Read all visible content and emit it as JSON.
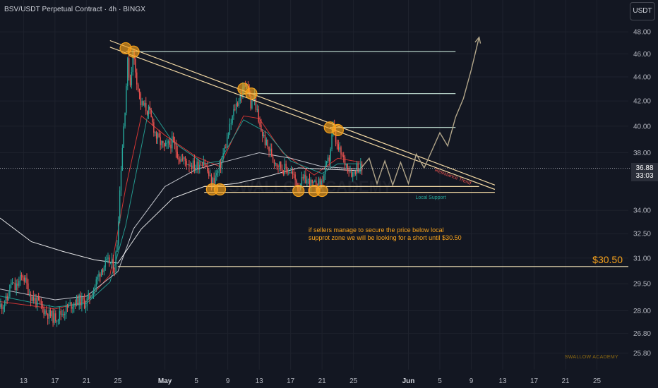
{
  "header": {
    "title": "BSV/USDT Perpetual Contract · 4h · BINGX",
    "currency": "USDT"
  },
  "price_tag": {
    "price": "36.88",
    "countdown": "33:03"
  },
  "labels": {
    "resistance": "Resistance Trend",
    "support": "Local Support",
    "note_line_1": "if sellers manage to secure the price below local",
    "note_line_2": "supprot zone we will be looking for a short until $30.50",
    "target": "$30.50",
    "watermark": "SWALLOW ACADEMY"
  },
  "colors": {
    "background": "#131722",
    "grid": "#1e222d",
    "up": "#26a69a",
    "down": "#ef5350",
    "ema_fast": "#e53935",
    "ema_mid": "#26a69a",
    "ma_slow": "#d1d4dc",
    "ma_slowest": "#ffffff",
    "trendline": "#f3d9a4",
    "levels": "#c8e6d9",
    "markers": "#f7a21b",
    "projection": "#b2a68a"
  },
  "chart_data": {
    "type": "candlestick",
    "title": "BSV/USDT Perpetual Contract · 4h · BINGX",
    "y_scale": "log",
    "y_range": [
      25.4,
      49.0
    ],
    "y_ticks": [
      "48.00",
      "46.00",
      "44.00",
      "42.00",
      "40.00",
      "38.00",
      "34.00",
      "32.50",
      "31.00",
      "29.50",
      "28.00",
      "26.80",
      "25.80"
    ],
    "x_range": [
      "2024-04-10",
      "2024-06-29"
    ],
    "x_ticks": [
      {
        "date": "2024-04-13",
        "label": "13"
      },
      {
        "date": "2024-04-17",
        "label": "17"
      },
      {
        "date": "2024-04-21",
        "label": "21"
      },
      {
        "date": "2024-04-25",
        "label": "25"
      },
      {
        "date": "2024-05-01",
        "label": "May",
        "bold": true
      },
      {
        "date": "2024-05-05",
        "label": "5"
      },
      {
        "date": "2024-05-09",
        "label": "9"
      },
      {
        "date": "2024-05-13",
        "label": "13"
      },
      {
        "date": "2024-05-17",
        "label": "17"
      },
      {
        "date": "2024-05-21",
        "label": "21"
      },
      {
        "date": "2024-05-25",
        "label": "25"
      },
      {
        "date": "2024-06-01",
        "label": "Jun",
        "bold": true
      },
      {
        "date": "2024-06-05",
        "label": "5"
      },
      {
        "date": "2024-06-09",
        "label": "9"
      },
      {
        "date": "2024-06-13",
        "label": "13"
      },
      {
        "date": "2024-06-17",
        "label": "17"
      },
      {
        "date": "2024-06-21",
        "label": "21"
      },
      {
        "date": "2024-06-25",
        "label": "25"
      }
    ],
    "current_price": 36.88,
    "price_path": [
      [
        "2024-04-10",
        28.2
      ],
      [
        "2024-04-11",
        28.6
      ],
      [
        "2024-04-11T12",
        29.6
      ],
      [
        "2024-04-12",
        29.2
      ],
      [
        "2024-04-13",
        30.0
      ],
      [
        "2024-04-14",
        28.8
      ],
      [
        "2024-04-15",
        28.4
      ],
      [
        "2024-04-16",
        27.9
      ],
      [
        "2024-04-17",
        27.6
      ],
      [
        "2024-04-18",
        27.9
      ],
      [
        "2024-04-19",
        28.3
      ],
      [
        "2024-04-20",
        28.6
      ],
      [
        "2024-04-21",
        28.4
      ],
      [
        "2024-04-22",
        29.2
      ],
      [
        "2024-04-23",
        30.4
      ],
      [
        "2024-04-24",
        30.8
      ],
      [
        "2024-04-24T16",
        30.4
      ],
      [
        "2024-04-25",
        32.0
      ],
      [
        "2024-04-25T12",
        37.0
      ],
      [
        "2024-04-26",
        41.5
      ],
      [
        "2024-04-26T08",
        45.2
      ],
      [
        "2024-04-26T16",
        43.4
      ],
      [
        "2024-04-27",
        46.2
      ],
      [
        "2024-04-27T12",
        43.8
      ],
      [
        "2024-04-28",
        41.8
      ],
      [
        "2024-04-29",
        41.2
      ],
      [
        "2024-04-30",
        39.2
      ],
      [
        "2024-05-01",
        38.3
      ],
      [
        "2024-05-02",
        38.8
      ],
      [
        "2024-05-03",
        37.6
      ],
      [
        "2024-05-04",
        37.3
      ],
      [
        "2024-05-05",
        37.0
      ],
      [
        "2024-05-06",
        37.5
      ],
      [
        "2024-05-07",
        35.8
      ],
      [
        "2024-05-08",
        36.8
      ],
      [
        "2024-05-09",
        39.0
      ],
      [
        "2024-05-10",
        41.5
      ],
      [
        "2024-05-11",
        42.8
      ],
      [
        "2024-05-11T12",
        43.8
      ],
      [
        "2024-05-12",
        41.6
      ],
      [
        "2024-05-12T12",
        42.4
      ],
      [
        "2024-05-13",
        40.2
      ],
      [
        "2024-05-14",
        38.6
      ],
      [
        "2024-05-15",
        37.5
      ],
      [
        "2024-05-16",
        36.9
      ],
      [
        "2024-05-17",
        36.7
      ],
      [
        "2024-05-18",
        35.7
      ],
      [
        "2024-05-19",
        36.1
      ],
      [
        "2024-05-20",
        35.6
      ],
      [
        "2024-05-21",
        35.9
      ],
      [
        "2024-05-22",
        37.6
      ],
      [
        "2024-05-22T12",
        39.9
      ],
      [
        "2024-05-23",
        38.4
      ],
      [
        "2024-05-24",
        37.3
      ],
      [
        "2024-05-25",
        36.5
      ],
      [
        "2024-05-25T12",
        37.0
      ],
      [
        "2024-05-26",
        36.88
      ]
    ],
    "moving_averages": [
      {
        "label": "fast EMA",
        "color": "#e53935",
        "points": [
          [
            "2024-04-10",
            28.5
          ],
          [
            "2024-04-17",
            28.1
          ],
          [
            "2024-04-21",
            28.5
          ],
          [
            "2024-04-24",
            30.0
          ],
          [
            "2024-04-26",
            35.5
          ],
          [
            "2024-04-28",
            40.8
          ],
          [
            "2024-05-01",
            39.3
          ],
          [
            "2024-05-05",
            37.7
          ],
          [
            "2024-05-08",
            37.0
          ],
          [
            "2024-05-11",
            40.8
          ],
          [
            "2024-05-13",
            40.6
          ],
          [
            "2024-05-16",
            38.0
          ],
          [
            "2024-05-20",
            36.4
          ],
          [
            "2024-05-23",
            37.6
          ],
          [
            "2024-05-26",
            37.3
          ]
        ]
      },
      {
        "label": "mid EMA",
        "color": "#26a69a",
        "points": [
          [
            "2024-04-10",
            28.8
          ],
          [
            "2024-04-17",
            28.2
          ],
          [
            "2024-04-21",
            28.4
          ],
          [
            "2024-04-24",
            29.6
          ],
          [
            "2024-04-26",
            33.0
          ],
          [
            "2024-04-29",
            41.5
          ],
          [
            "2024-05-02",
            38.8
          ],
          [
            "2024-05-06",
            37.2
          ],
          [
            "2024-05-08",
            37.4
          ],
          [
            "2024-05-11",
            40.5
          ],
          [
            "2024-05-14",
            39.5
          ],
          [
            "2024-05-17",
            37.4
          ],
          [
            "2024-05-21",
            36.5
          ],
          [
            "2024-05-23",
            37.2
          ],
          [
            "2024-05-26",
            37.2
          ]
        ]
      },
      {
        "label": "slow MA",
        "color": "#d1d4dc",
        "points": [
          [
            "2024-04-10",
            29.2
          ],
          [
            "2024-04-17",
            28.6
          ],
          [
            "2024-04-21",
            28.8
          ],
          [
            "2024-04-25",
            30.2
          ],
          [
            "2024-04-27",
            32.8
          ],
          [
            "2024-05-01",
            35.6
          ],
          [
            "2024-05-05",
            36.8
          ],
          [
            "2024-05-09",
            37.4
          ],
          [
            "2024-05-13",
            38.0
          ],
          [
            "2024-05-17",
            37.6
          ],
          [
            "2024-05-21",
            37.0
          ],
          [
            "2024-05-26",
            36.8
          ]
        ]
      },
      {
        "label": "slowest MA",
        "color": "#ffffff",
        "points": [
          [
            "2024-04-10",
            33.5
          ],
          [
            "2024-04-14",
            32.0
          ],
          [
            "2024-04-18",
            31.4
          ],
          [
            "2024-04-22",
            30.9
          ],
          [
            "2024-04-25",
            30.7
          ],
          [
            "2024-04-28",
            32.8
          ],
          [
            "2024-05-02",
            34.8
          ],
          [
            "2024-05-06",
            35.6
          ],
          [
            "2024-05-10",
            35.8
          ],
          [
            "2024-05-14",
            36.3
          ],
          [
            "2024-05-18",
            36.9
          ],
          [
            "2024-05-22",
            36.8
          ],
          [
            "2024-05-26",
            36.7
          ]
        ]
      }
    ],
    "horizontal_levels": [
      {
        "y": 46.2,
        "from": "2024-04-26",
        "to": "2024-06-07"
      },
      {
        "y": 42.6,
        "from": "2024-05-11",
        "to": "2024-06-07"
      },
      {
        "y": 39.9,
        "from": "2024-05-22",
        "to": "2024-06-07"
      },
      {
        "y": 30.5,
        "from": "2024-04-25",
        "to": "2024-06-29",
        "label": "$30.50"
      }
    ],
    "resistance_trend": {
      "label": "Resistance Trend",
      "upper": [
        [
          "2024-04-24",
          47.2
        ],
        [
          "2024-06-12",
          35.7
        ]
      ],
      "lower": [
        [
          "2024-04-24",
          46.6
        ],
        [
          "2024-06-12",
          35.4
        ]
      ]
    },
    "local_support": {
      "label": "Local Support",
      "upper": [
        [
          "2024-05-06",
          35.6
        ],
        [
          "2024-06-10",
          35.6
        ]
      ],
      "lower": [
        [
          "2024-05-06",
          35.2
        ],
        [
          "2024-06-12",
          35.2
        ]
      ]
    },
    "touch_points": [
      [
        "2024-04-26",
        46.5
      ],
      [
        "2024-04-27",
        46.2
      ],
      [
        "2024-05-11",
        43.0
      ],
      [
        "2024-05-12",
        42.6
      ],
      [
        "2024-05-22",
        39.9
      ],
      [
        "2024-05-23",
        39.7
      ],
      [
        "2024-05-07",
        35.4
      ],
      [
        "2024-05-08",
        35.4
      ],
      [
        "2024-05-18",
        35.3
      ],
      [
        "2024-05-20",
        35.3
      ],
      [
        "2024-05-21",
        35.3
      ]
    ],
    "projection_path": [
      [
        "2024-05-26",
        36.9
      ],
      [
        "2024-05-27",
        37.6
      ],
      [
        "2024-05-28",
        35.8
      ],
      [
        "2024-05-29",
        37.4
      ],
      [
        "2024-05-30",
        35.7
      ],
      [
        "2024-05-31",
        37.3
      ],
      [
        "2024-06-01",
        35.8
      ],
      [
        "2024-06-02",
        37.9
      ],
      [
        "2024-06-03",
        36.9
      ],
      [
        "2024-06-05",
        39.5
      ],
      [
        "2024-06-06",
        38.5
      ],
      [
        "2024-06-07",
        40.7
      ],
      [
        "2024-06-08",
        42.2
      ],
      [
        "2024-06-09",
        44.6
      ],
      [
        "2024-06-10",
        47.5
      ]
    ]
  }
}
